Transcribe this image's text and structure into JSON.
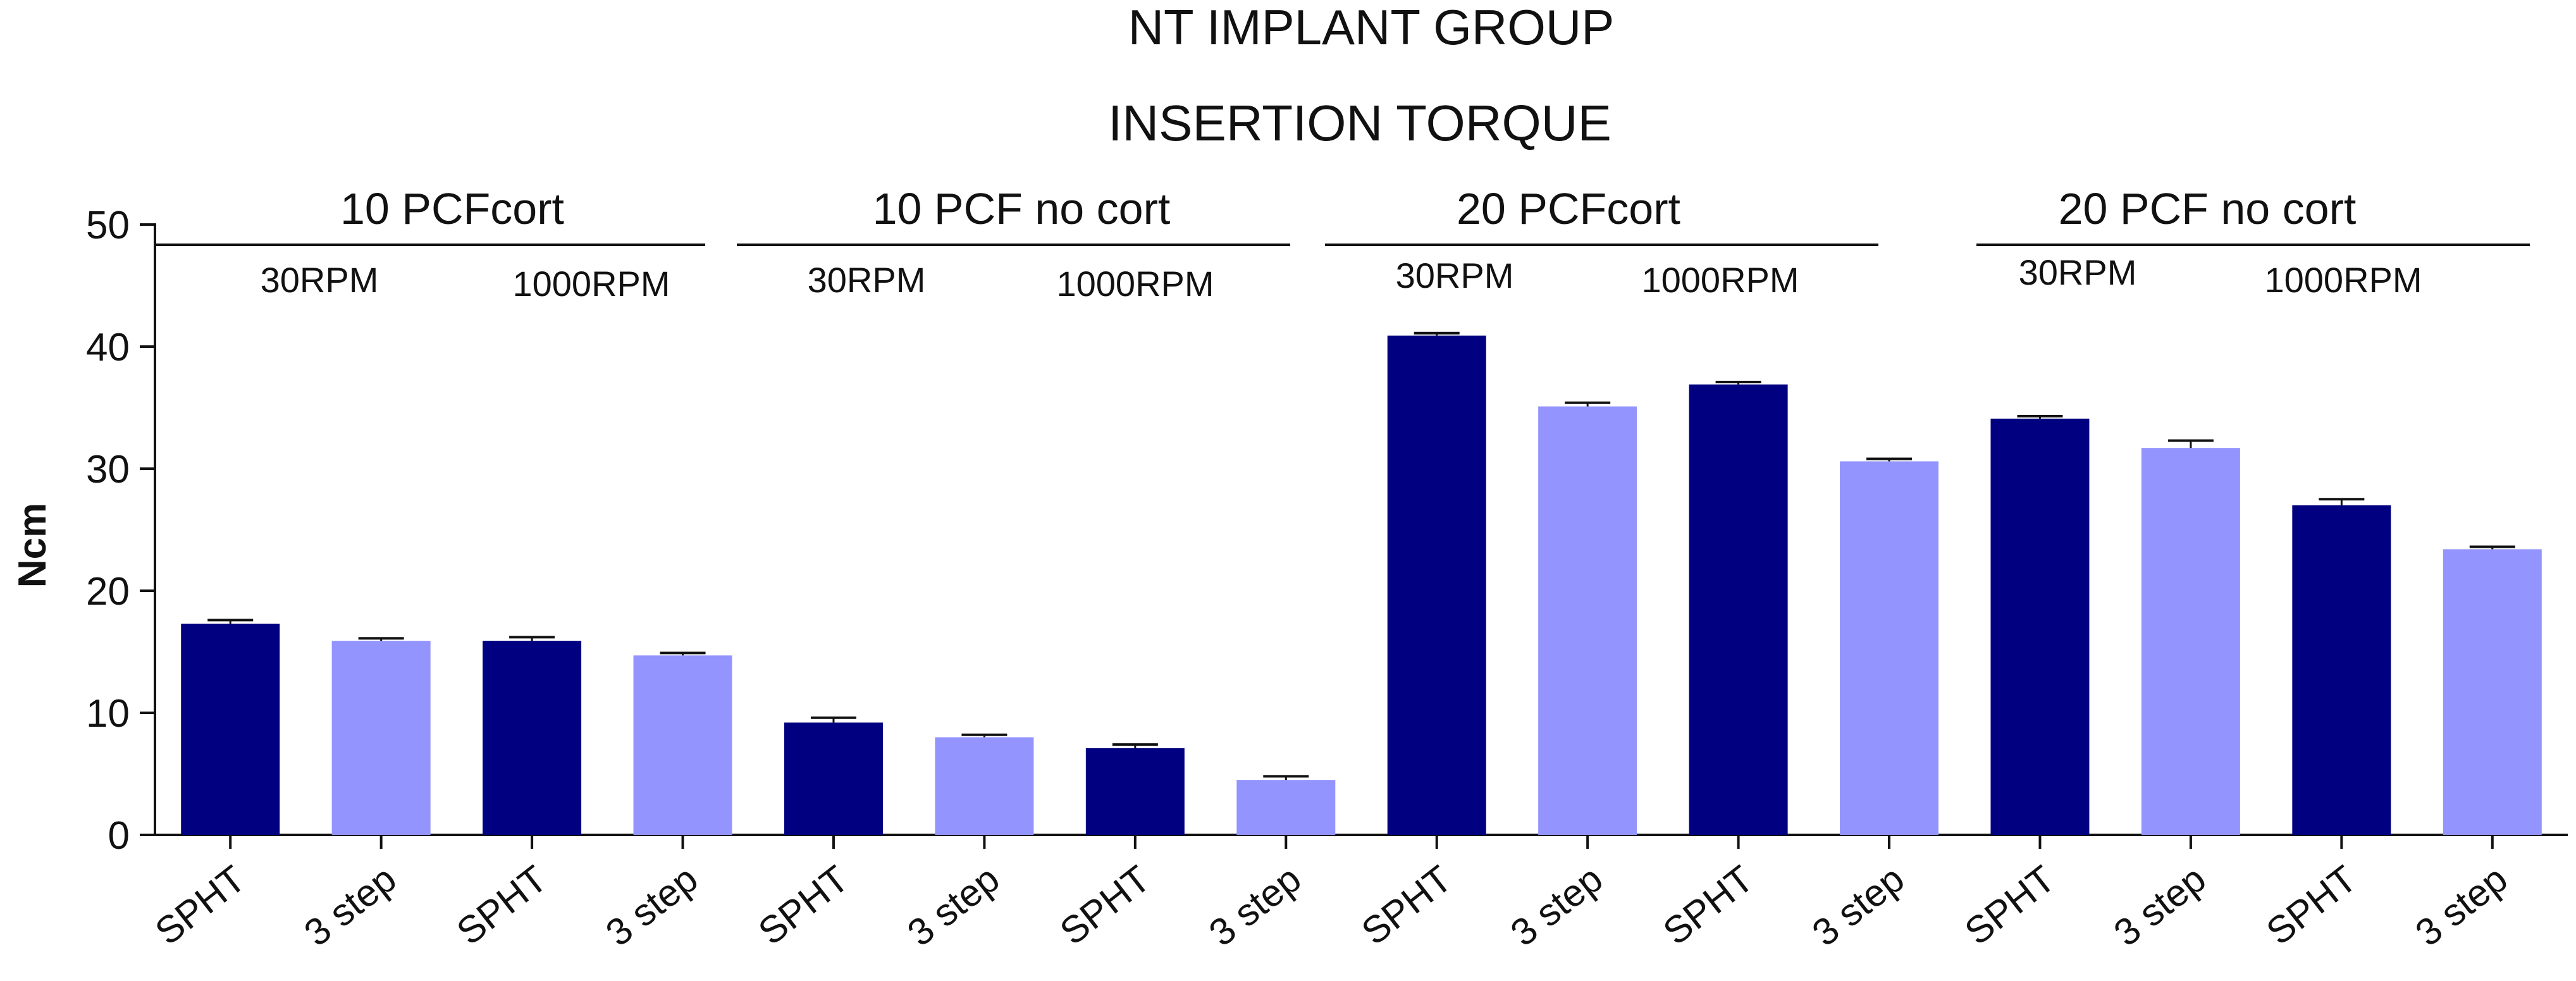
{
  "chart_data": {
    "type": "bar",
    "title": "NT IMPLANT GROUP",
    "subtitle": "INSERTION TORQUE",
    "ylabel": "Ncm",
    "xlabel": "",
    "ylim": [
      0,
      50
    ],
    "yticks": [
      0,
      10,
      20,
      30,
      40,
      50
    ],
    "grid": false,
    "categories": [
      "SPHT",
      "3 step",
      "SPHT",
      "3 step",
      "SPHT",
      "3 step",
      "SPHT",
      "3 step",
      "SPHT",
      "3 step",
      "SPHT",
      "3 step",
      "SPHT",
      "3 step",
      "SPHT",
      "3 step"
    ],
    "values": [
      17.3,
      15.9,
      15.9,
      14.7,
      9.2,
      8.0,
      7.1,
      4.5,
      40.9,
      35.1,
      36.9,
      30.6,
      34.1,
      31.7,
      27.0,
      23.4
    ],
    "errors": [
      0.3,
      0.2,
      0.3,
      0.2,
      0.4,
      0.2,
      0.3,
      0.3,
      0.2,
      0.3,
      0.2,
      0.2,
      0.2,
      0.6,
      0.5,
      0.2
    ],
    "series_colors": {
      "SPHT": "#000080",
      "3 step": "#9494FF"
    },
    "groups": [
      {
        "label": "10 PCFcort",
        "subgroups": [
          "30RPM",
          "1000RPM"
        ]
      },
      {
        "label": "10 PCF no cort",
        "subgroups": [
          "30RPM",
          "1000RPM"
        ]
      },
      {
        "label": "20 PCFcort",
        "subgroups": [
          "30RPM",
          "1000RPM"
        ]
      },
      {
        "label": "20 PCF no cort",
        "subgroups": [
          "30RPM",
          "1000RPM"
        ]
      }
    ]
  }
}
